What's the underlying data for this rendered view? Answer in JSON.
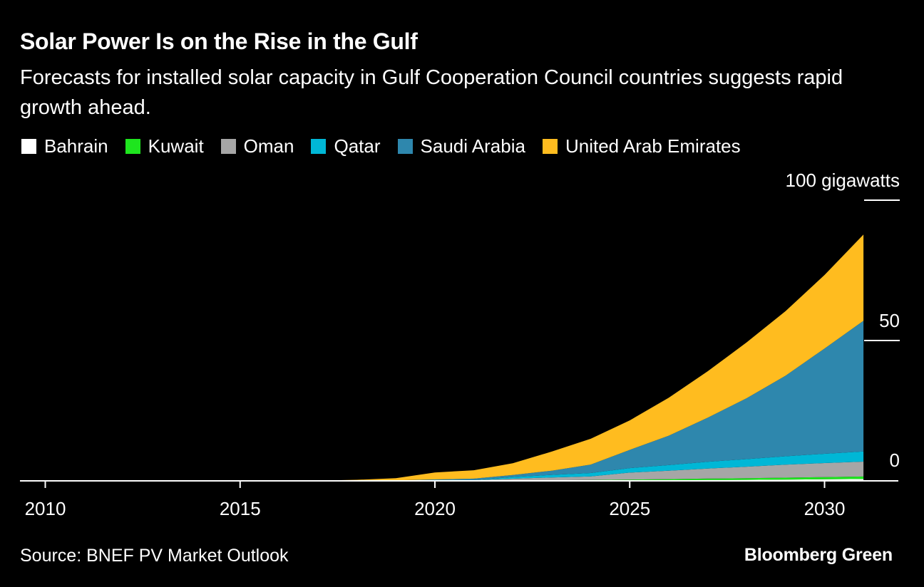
{
  "header": {
    "title": "Solar Power Is on the Rise in the Gulf",
    "subtitle": "Forecasts for installed solar capacity in Gulf Cooperation Council countries suggests rapid growth ahead."
  },
  "footer": {
    "source": "Source: BNEF PV Market Outlook",
    "brand": "Bloomberg Green"
  },
  "colors": {
    "background": "#000000",
    "Bahrain": "#ffffff",
    "Kuwait": "#1ee51e",
    "Oman": "#a6a6a6",
    "Qatar": "#00b7d6",
    "Saudi Arabia": "#2e87ad",
    "United Arab Emirates": "#ffbc1f"
  },
  "chart_data": {
    "type": "area",
    "stacked": true,
    "title": "Solar Power Is on the Rise in the Gulf",
    "subtitle": "Forecasts for installed solar capacity in Gulf Cooperation Council countries suggests rapid growth ahead.",
    "xlabel": "",
    "ylabel": "",
    "y_unit_label": "100 gigawatts",
    "xlim": [
      2009,
      2033
    ],
    "ylim": [
      0,
      100
    ],
    "x_ticks": [
      2010,
      2015,
      2020,
      2025,
      2030
    ],
    "x_tick_labels": [
      "2010",
      "2015",
      "2020",
      "2025",
      "2030"
    ],
    "y_ticks": [
      0,
      50,
      100
    ],
    "y_tick_labels": [
      "0",
      "50",
      "100 gigawatts"
    ],
    "y_axis_side": "right",
    "grid": false,
    "legend_position": "top",
    "x": [
      2010,
      2011,
      2012,
      2013,
      2014,
      2015,
      2016,
      2017,
      2018,
      2019,
      2020,
      2021,
      2022,
      2023,
      2024,
      2025,
      2026,
      2027,
      2028,
      2029,
      2030,
      2031
    ],
    "series": [
      {
        "name": "Bahrain",
        "values": [
          0,
          0,
          0,
          0,
          0,
          0,
          0,
          0,
          0,
          0,
          0.02,
          0.03,
          0.05,
          0.08,
          0.1,
          0.15,
          0.2,
          0.3,
          0.35,
          0.45,
          0.55,
          0.65
        ]
      },
      {
        "name": "Kuwait",
        "values": [
          0,
          0,
          0,
          0,
          0,
          0,
          0,
          0.01,
          0.02,
          0.05,
          0.08,
          0.1,
          0.12,
          0.15,
          0.2,
          0.3,
          0.4,
          0.5,
          0.6,
          0.7,
          0.8,
          0.9
        ]
      },
      {
        "name": "Oman",
        "values": [
          0,
          0,
          0,
          0,
          0,
          0,
          0,
          0,
          0,
          0.02,
          0.1,
          0.15,
          0.6,
          1.0,
          1.3,
          2.5,
          3.0,
          3.6,
          4.1,
          4.6,
          5.0,
          5.3
        ]
      },
      {
        "name": "Qatar",
        "values": [
          0,
          0,
          0,
          0,
          0,
          0,
          0,
          0,
          0,
          0,
          0,
          0,
          0.6,
          0.9,
          1.2,
          1.6,
          2.0,
          2.4,
          2.7,
          3.0,
          3.3,
          3.6
        ]
      },
      {
        "name": "Saudi Arabia",
        "values": [
          0,
          0,
          0,
          0,
          0,
          0,
          0,
          0,
          0.05,
          0.1,
          0.3,
          0.5,
          0.7,
          1.5,
          3.0,
          6.5,
          10.5,
          15.7,
          21.7,
          28.7,
          37.5,
          46.6
        ]
      },
      {
        "name": "United Arab Emirates",
        "values": [
          0,
          0,
          0,
          0,
          0,
          0.02,
          0.05,
          0.1,
          0.3,
          0.8,
          2.5,
          3.0,
          4.2,
          6.8,
          9.2,
          10.5,
          13.5,
          16.5,
          19.9,
          23.0,
          26.2,
          30.7
        ]
      }
    ]
  }
}
